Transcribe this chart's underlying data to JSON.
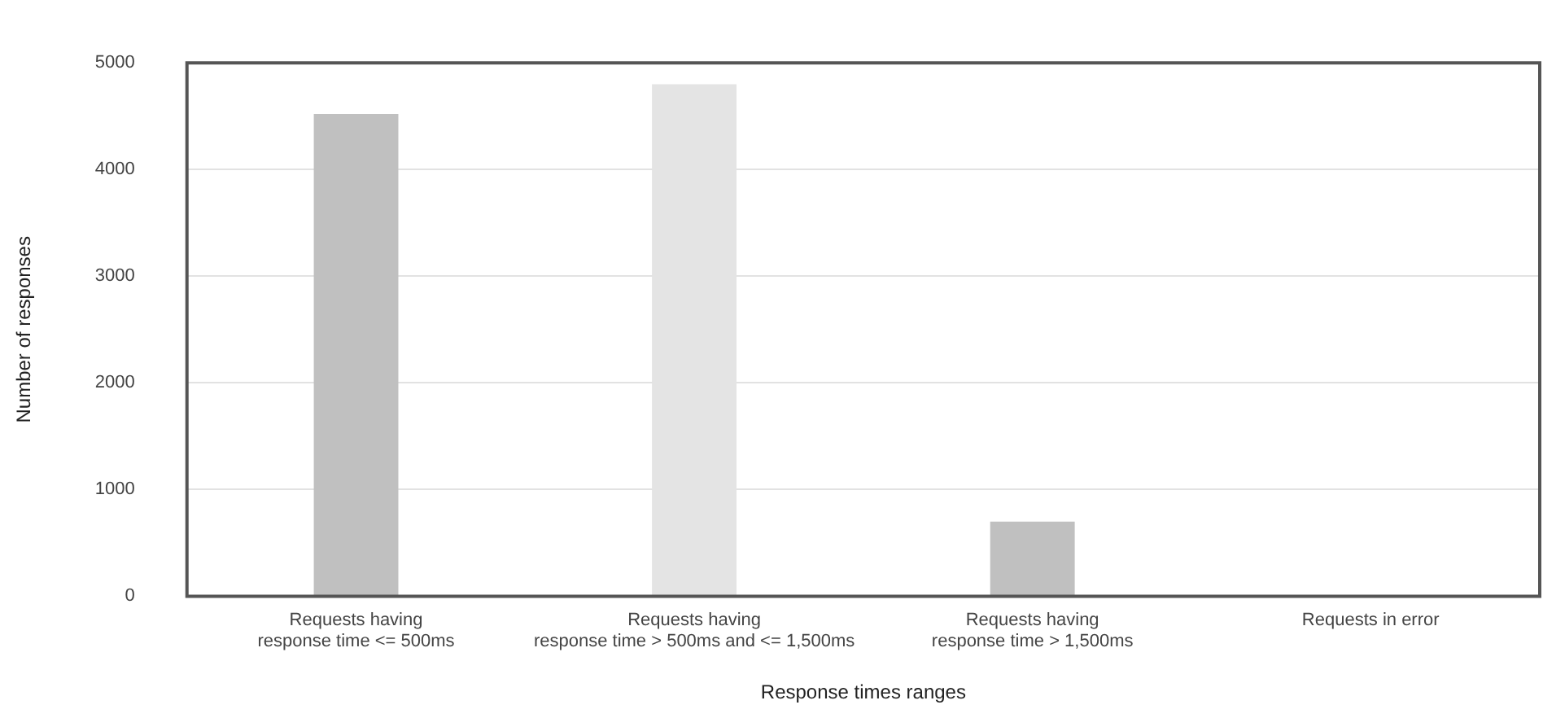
{
  "chart_data": {
    "type": "bar",
    "xlabel": "Response times ranges",
    "ylabel": "Number of responses",
    "categories": [
      "Requests having\nresponse time <= 500ms",
      "Requests having\nresponse time > 500ms and <= 1,500ms",
      "Requests having\nresponse time > 1,500ms",
      "Requests in error"
    ],
    "values": [
      4520,
      4800,
      700,
      0
    ],
    "colors": [
      "#c0c0c0",
      "#e4e4e4",
      "#c0c0c0",
      "#c0c0c0"
    ],
    "ylim": [
      0,
      5000
    ],
    "yticks": [
      0,
      1000,
      2000,
      3000,
      4000,
      5000
    ],
    "grid": "y",
    "legend": false
  }
}
